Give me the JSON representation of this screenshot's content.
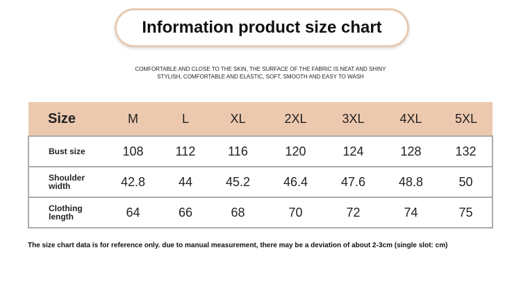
{
  "header": {
    "title": "Information product size chart",
    "lines": [
      "COMFORTABLE AND CLOSE TO THE SKIN, THE SURFACE OF THE FABRIC IS NEAT AND SHINY",
      "STYLISH, COMFORTABLE AND ELASTIC, SOFT, SMOOTH AND EASY TO WASH"
    ]
  },
  "table": {
    "header": [
      "Size",
      "M",
      "L",
      "XL",
      "2XL",
      "3XL",
      "4XL",
      "5XL"
    ],
    "rows": [
      [
        "Bust size",
        "108",
        "112",
        "116",
        "120",
        "124",
        "128",
        "132"
      ],
      [
        "Shoulder width",
        "42.8",
        "44",
        "45.2",
        "46.4",
        "47.6",
        "48.8",
        "50"
      ],
      [
        "Clothing length",
        "64",
        "66",
        "68",
        "70",
        "72",
        "74",
        "75"
      ]
    ]
  },
  "note": "The size chart data is for reference only. due to manual measurement, there may be a deviation of about 2-3cm (single slot: cm)"
}
